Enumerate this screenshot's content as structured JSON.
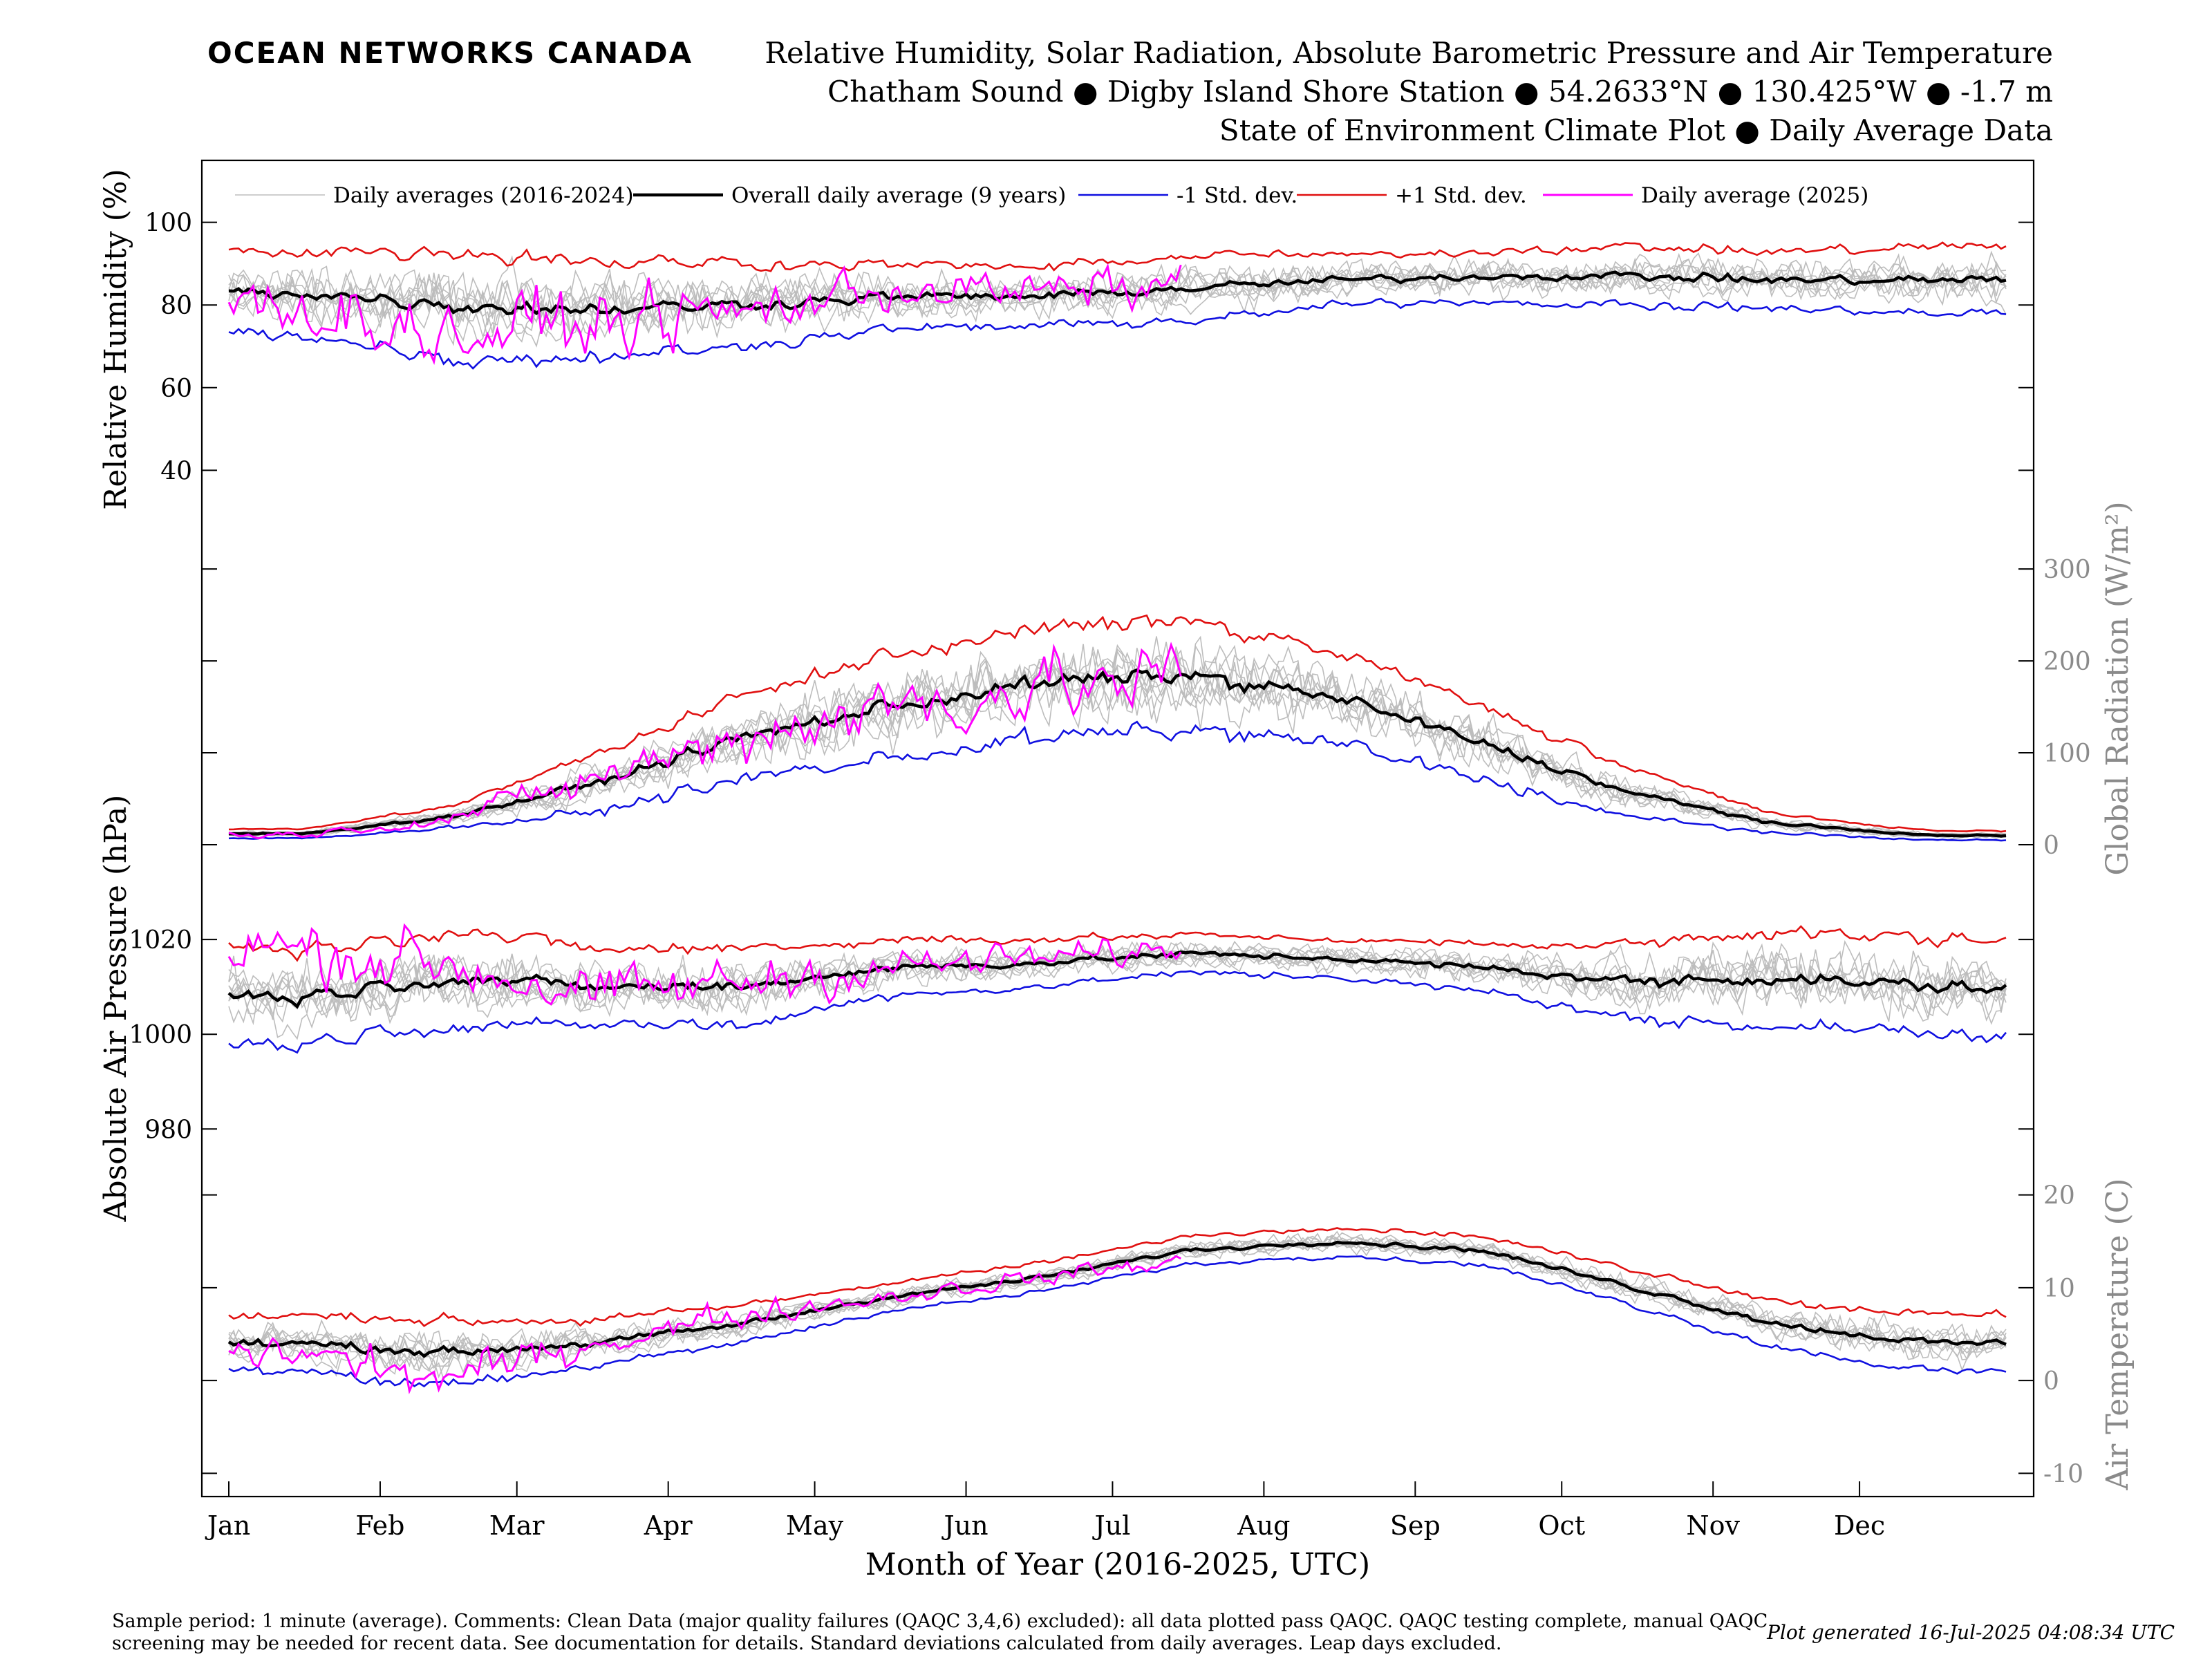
{
  "header": {
    "brand": "OCEAN NETWORKS CANADA",
    "title_lines": [
      "Relative Humidity, Solar Radiation, Absolute Barometric Pressure and Air Temperature",
      "Chatham Sound ● Digby Island Shore Station ● 54.2633°N ● 130.425°W ● -1.7 m",
      "State of Environment Climate Plot ● Daily Average Data"
    ]
  },
  "footer": {
    "note": "Sample period: 1 minute (average). Comments: Clean Data (major quality failures (QAQC 3,4,6) excluded): all data plotted pass QAQC. QAQC testing complete, manual QAQC screening may be needed for recent data. See documentation for details. Standard deviations calculated from daily averages. Leap days excluded.",
    "generated": "Plot generated 16-Jul-2025 04:08:34 UTC"
  },
  "colors": {
    "historical": "#bdbdbd",
    "overall": "#000000",
    "minus_std": "#1010e0",
    "plus_std": "#e01010",
    "current_year": "#ff00ff",
    "brand": "#1a9cc4",
    "right_axis": "#8a8a8a"
  },
  "chart_data": {
    "type": "line",
    "x_axis": {
      "label": "Month of Year (2016-2025, UTC)",
      "ticks": [
        "Jan",
        "Feb",
        "Mar",
        "Apr",
        "May",
        "Jun",
        "Jul",
        "Aug",
        "Sep",
        "Oct",
        "Nov",
        "Dec"
      ],
      "tick_day_of_year": [
        1,
        32,
        60,
        91,
        121,
        152,
        182,
        213,
        244,
        274,
        305,
        335
      ],
      "range": [
        1,
        365
      ]
    },
    "legend": {
      "placement": "top",
      "entries": [
        "Daily averages (2016-2024)",
        "Overall daily average (9 years)",
        "-1 Std. dev.",
        "+1 Std. dev.",
        "Daily average (2025)"
      ]
    },
    "panels": [
      {
        "id": "humidity",
        "ylabel": "Relative Humidity (%)",
        "axis_side": "left",
        "ylim": [
          25,
          115
        ],
        "yticks": [
          40,
          60,
          80,
          100
        ],
        "mean_by_month": [
          83,
          80,
          79,
          80,
          82,
          82,
          84,
          86,
          87,
          87,
          86,
          86
        ],
        "std_by_month": [
          10,
          13,
          12,
          10,
          8,
          7,
          8,
          6,
          6,
          7,
          7,
          8
        ],
        "current_year_mean_by_month": [
          80,
          72,
          76,
          78,
          84,
          83,
          85
        ],
        "current_year_last_day": 196
      },
      {
        "id": "radiation",
        "ylabel": "Global Radiation (W/m²)",
        "axis_side": "right",
        "ylim": [
          0,
          340
        ],
        "yticks": [
          0,
          100,
          200,
          300
        ],
        "mean_by_month": [
          12,
          30,
          65,
          115,
          150,
          175,
          185,
          160,
          110,
          55,
          22,
          10
        ],
        "std_by_month": [
          5,
          12,
          30,
          45,
          55,
          60,
          60,
          50,
          40,
          25,
          10,
          5
        ],
        "current_year_mean_by_month": [
          11,
          28,
          70,
          118,
          150,
          170,
          180
        ],
        "current_year_last_day": 196
      },
      {
        "id": "pressure",
        "ylabel": "Absolute Air Pressure (hPa)",
        "axis_side": "left",
        "ylim": [
          971,
          1040
        ],
        "yticks": [
          980,
          1000,
          1020
        ],
        "mean_by_month": [
          1008,
          1012,
          1010,
          1010,
          1014,
          1015,
          1017,
          1016,
          1014,
          1011,
          1012,
          1010
        ],
        "std_by_month": [
          10,
          10,
          8,
          8,
          6,
          5,
          4,
          4,
          5,
          8,
          10,
          10
        ],
        "current_year_mean_by_month": [
          1018,
          1015,
          1008,
          1011,
          1014,
          1016,
          1018
        ],
        "current_year_last_day": 196
      },
      {
        "id": "temperature",
        "ylabel": "Air Temperature (C)",
        "axis_side": "right",
        "ylim": [
          -12.5,
          22.5
        ],
        "yticks": [
          -10,
          0,
          10,
          20
        ],
        "mean_by_month": [
          4,
          3,
          4,
          6,
          9,
          11,
          14,
          15,
          14,
          10,
          6,
          4
        ],
        "std_by_month": [
          3,
          3.5,
          2.5,
          2,
          1.5,
          1.5,
          1.5,
          1.5,
          1.5,
          2,
          2.5,
          3
        ],
        "current_year_mean_by_month": [
          3,
          0,
          4,
          7,
          9,
          11,
          13
        ],
        "current_year_last_day": 196
      }
    ]
  }
}
